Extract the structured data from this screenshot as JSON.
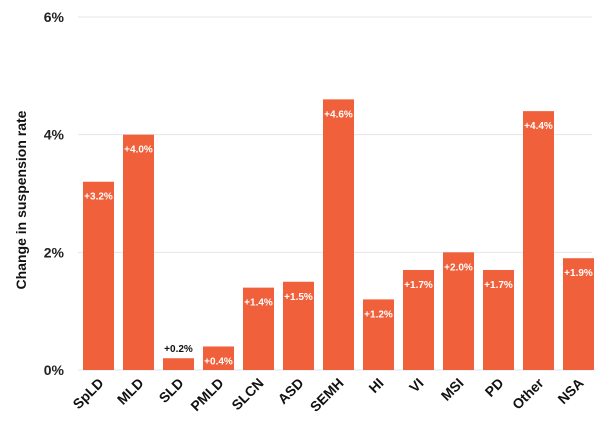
{
  "chart_data": {
    "type": "bar",
    "ylabel": "Change in suspension rate",
    "ylim": [
      0,
      6
    ],
    "yticks": [
      {
        "value": 0,
        "label": "0%"
      },
      {
        "value": 2,
        "label": "2%"
      },
      {
        "value": 4,
        "label": "4%"
      },
      {
        "value": 6,
        "label": "6%"
      }
    ],
    "grid": true,
    "categories": [
      "SpLD",
      "MLD",
      "SLD",
      "PMLD",
      "SLCN",
      "ASD",
      "SEMH",
      "HI",
      "VI",
      "MSI",
      "PD",
      "Other",
      "NSA"
    ],
    "values": [
      3.2,
      4.0,
      0.2,
      0.4,
      1.4,
      1.5,
      4.6,
      1.2,
      1.7,
      2.0,
      1.7,
      4.4,
      1.9
    ],
    "data_labels": [
      "+3.2%",
      "+4.0%",
      "+0.2%",
      "+0.4%",
      "+1.4%",
      "+1.5%",
      "+4.6%",
      "+1.2%",
      "+1.7%",
      "+2.0%",
      "+1.7%",
      "+4.4%",
      "+1.9%"
    ],
    "colors": {
      "bar": "#f0603a",
      "label_inside": "#ffffff",
      "label_outside": "#111111"
    }
  }
}
